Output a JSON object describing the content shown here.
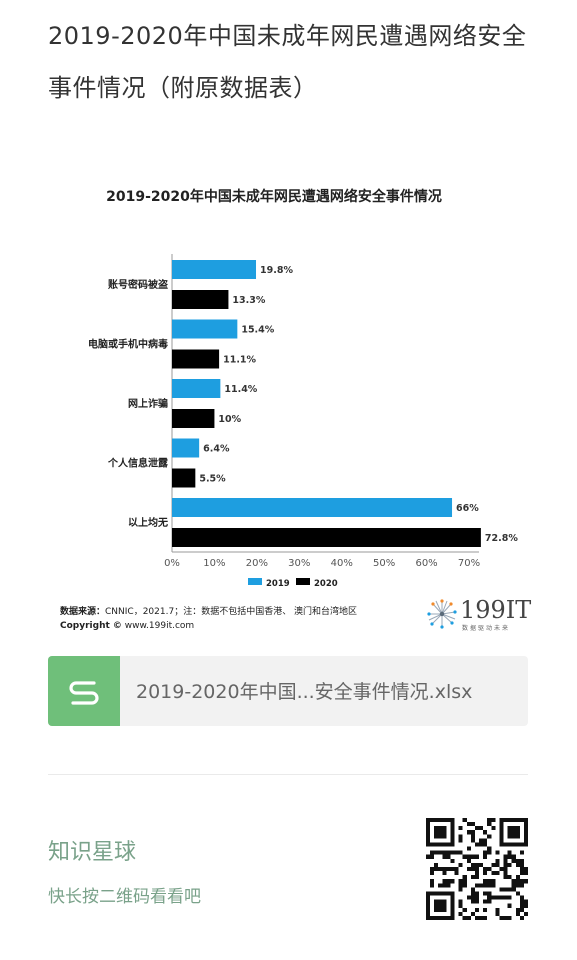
{
  "article": {
    "title": "2019-2020年中国未成年网民遭遇网络安全事件情况（附原数据表）"
  },
  "chart_data": {
    "type": "bar",
    "orientation": "horizontal",
    "title": "2019-2020年中国未成年网民遭遇网络安全事件情况",
    "categories": [
      "账号密码被盗",
      "电脑或手机中病毒",
      "网上诈骗",
      "个人信息泄露",
      "以上均无"
    ],
    "series": [
      {
        "name": "2019",
        "color": "#1e9ee0",
        "values": [
          19.8,
          15.4,
          11.4,
          6.4,
          66
        ],
        "labels": [
          "19.8%",
          "15.4%",
          "11.4%",
          "6.4%",
          "66%"
        ]
      },
      {
        "name": "2020",
        "color": "#000000",
        "values": [
          13.3,
          11.1,
          10,
          5.5,
          72.8
        ],
        "labels": [
          "13.3%",
          "11.1%",
          "10%",
          "5.5%",
          "72.8%"
        ]
      }
    ],
    "xlim": [
      0,
      70
    ],
    "x_ticks": [
      "0%",
      "10%",
      "20%",
      "30%",
      "40%",
      "50%",
      "60%",
      "70%"
    ],
    "grid": false,
    "legend": "bottom-center"
  },
  "source": {
    "label": "数据来源：",
    "text": "CNNIC，2021.7；注：数据不包括中国香港、 澳门和台湾地区",
    "copyright_label": "Copyright ©",
    "copyright_text": " www.199it.com"
  },
  "brand": {
    "name": "199IT",
    "tagline": "数据驱动未来"
  },
  "file": {
    "icon": "s-sheet-icon",
    "name": "2019-2020年中国...安全事件情况.xlsx",
    "icon_color": "#6fbf7a"
  },
  "footer": {
    "planet_title": "知识星球",
    "planet_sub": "快长按二维码看看吧"
  }
}
